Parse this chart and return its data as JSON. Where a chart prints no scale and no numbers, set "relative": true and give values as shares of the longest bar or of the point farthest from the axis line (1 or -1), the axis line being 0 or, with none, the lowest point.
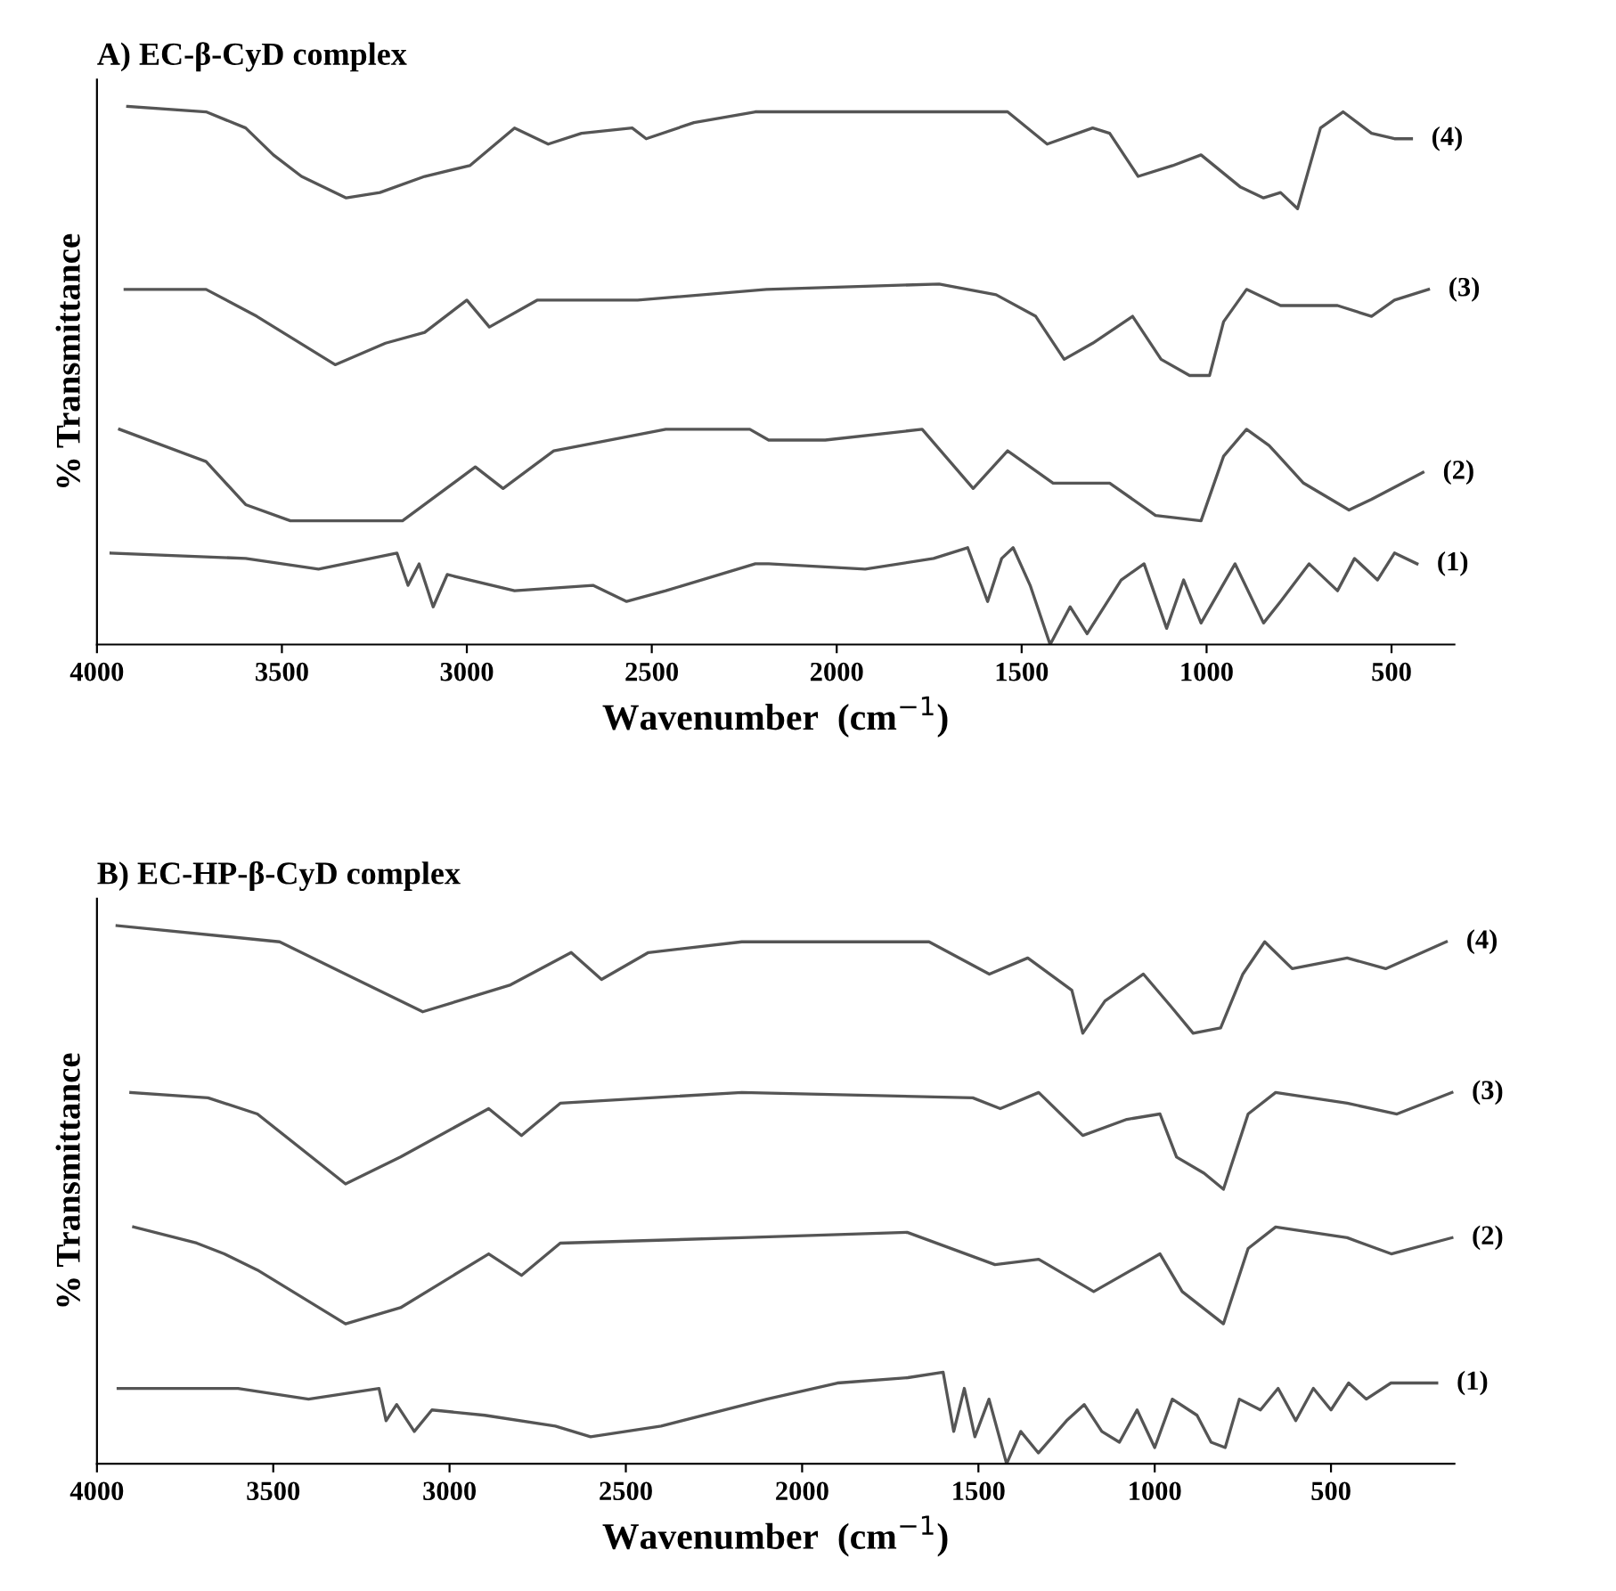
{
  "chart_data": [
    {
      "type": "line",
      "title": "A) EC-β-CyD complex",
      "xlabel": "Wavenumber  (cm$^{−1}$)",
      "ylabel": "% Transmittance",
      "relative": true,
      "tick_labels": "x",
      "grid": false,
      "legend": false,
      "marker": "none",
      "line_style": "solid",
      "xlim": [
        4000,
        330
      ],
      "xticks": [
        4000,
        3500,
        3000,
        2500,
        2000,
        1500,
        1000,
        500
      ],
      "series": [
        {
          "name": "(4)",
          "color": "#555555",
          "x": [
            3917,
            3705,
            3598,
            3523,
            3447,
            3326,
            3235,
            3114,
            2992,
            2871,
            2780,
            2690,
            2553,
            2515,
            2386,
            2220,
            2184,
            1723,
            1538,
            1431,
            1308,
            1262,
            1185,
            1092,
            1015,
            908,
            846,
            800,
            754,
            692,
            631,
            554,
            492,
            446
          ],
          "values": [
            1.0,
            0.99,
            0.96,
            0.91,
            0.87,
            0.83,
            0.84,
            0.87,
            0.89,
            0.96,
            0.93,
            0.95,
            0.96,
            0.94,
            0.97,
            0.99,
            0.99,
            0.99,
            0.99,
            0.93,
            0.96,
            0.95,
            0.87,
            0.89,
            0.91,
            0.85,
            0.83,
            0.84,
            0.81,
            0.96,
            0.99,
            0.95,
            0.94,
            0.94
          ]
        },
        {
          "name": "(3)",
          "color": "#555555",
          "x": [
            3924,
            3705,
            3568,
            3356,
            3220,
            3114,
            3000,
            2939,
            2810,
            2538,
            2190,
            1723,
            1569,
            1462,
            1385,
            1308,
            1200,
            1123,
            1046,
            992,
            954,
            892,
            800,
            646,
            554,
            492,
            400
          ],
          "values": [
            0.66,
            0.66,
            0.61,
            0.52,
            0.56,
            0.58,
            0.64,
            0.59,
            0.64,
            0.64,
            0.66,
            0.67,
            0.65,
            0.61,
            0.53,
            0.56,
            0.61,
            0.53,
            0.5,
            0.5,
            0.6,
            0.66,
            0.63,
            0.63,
            0.61,
            0.64,
            0.66
          ]
        },
        {
          "name": "(2)",
          "color": "#555555",
          "x": [
            3939,
            3705,
            3598,
            3477,
            3174,
            2977,
            2902,
            2765,
            2462,
            2235,
            2184,
            2031,
            1769,
            1631,
            1538,
            1415,
            1262,
            1138,
            1015,
            954,
            892,
            831,
            738,
            615,
            554,
            415
          ],
          "values": [
            0.4,
            0.34,
            0.26,
            0.23,
            0.23,
            0.33,
            0.29,
            0.36,
            0.4,
            0.4,
            0.38,
            0.38,
            0.4,
            0.29,
            0.36,
            0.3,
            0.3,
            0.24,
            0.23,
            0.35,
            0.4,
            0.37,
            0.3,
            0.25,
            0.27,
            0.32
          ]
        },
        {
          "name": "(1)",
          "color": "#555555",
          "x": [
            3962,
            3598,
            3401,
            3189,
            3159,
            3129,
            3091,
            3053,
            2871,
            2659,
            2568,
            2462,
            2220,
            2184,
            1923,
            1738,
            1646,
            1592,
            1554,
            1523,
            1477,
            1423,
            1369,
            1323,
            1231,
            1169,
            1108,
            1062,
            1015,
            923,
            846,
            800,
            723,
            646,
            600,
            538,
            492,
            431
          ],
          "values": [
            0.17,
            0.16,
            0.14,
            0.17,
            0.11,
            0.15,
            0.07,
            0.13,
            0.1,
            0.11,
            0.08,
            0.1,
            0.15,
            0.15,
            0.14,
            0.16,
            0.18,
            0.08,
            0.16,
            0.18,
            0.11,
            0.0,
            0.07,
            0.02,
            0.12,
            0.15,
            0.03,
            0.12,
            0.04,
            0.15,
            0.04,
            0.08,
            0.15,
            0.1,
            0.16,
            0.12,
            0.17,
            0.15
          ]
        }
      ]
    },
    {
      "type": "line",
      "title": "B) EC-HP-β-CyD complex",
      "xlabel": "Wavenumber  (cm$^{−1}$)",
      "ylabel": "% Transmittance",
      "relative": true,
      "tick_labels": "x",
      "grid": false,
      "legend": false,
      "marker": "none",
      "line_style": "solid",
      "xlim": [
        4000,
        150
      ],
      "xticks": [
        4000,
        3500,
        3000,
        2500,
        2000,
        1500,
        1000,
        500
      ],
      "series": [
        {
          "name": "(4)",
          "color": "#555555",
          "x": [
            3943,
            3482,
            3295,
            3076,
            2827,
            2655,
            2569,
            2436,
            2171,
            1640,
            1469,
            1360,
            1235,
            1204,
            1141,
            1032,
            954,
            891,
            813,
            750,
            688,
            610,
            454,
            345,
            173
          ],
          "values": [
            1.0,
            0.97,
            0.91,
            0.84,
            0.89,
            0.95,
            0.9,
            0.95,
            0.97,
            0.97,
            0.91,
            0.94,
            0.88,
            0.8,
            0.86,
            0.91,
            0.85,
            0.8,
            0.81,
            0.91,
            0.97,
            0.92,
            0.94,
            0.92,
            0.97
          ]
        },
        {
          "name": "(3)",
          "color": "#555555",
          "x": [
            3904,
            3685,
            3545,
            3295,
            3139,
            2889,
            2796,
            2686,
            2171,
            1516,
            1438,
            1329,
            1204,
            1079,
            985,
            938,
            860,
            805,
            735,
            657,
            454,
            313,
            157
          ],
          "values": [
            0.69,
            0.68,
            0.65,
            0.52,
            0.57,
            0.66,
            0.61,
            0.67,
            0.69,
            0.68,
            0.66,
            0.69,
            0.61,
            0.64,
            0.65,
            0.57,
            0.54,
            0.51,
            0.65,
            0.69,
            0.67,
            0.65,
            0.69
          ]
        },
        {
          "name": "(2)",
          "color": "#555555",
          "x": [
            3896,
            3717,
            3639,
            3545,
            3295,
            3139,
            2889,
            2796,
            2686,
            2171,
            1702,
            1453,
            1329,
            1173,
            985,
            922,
            805,
            735,
            657,
            454,
            329,
            157
          ],
          "values": [
            0.44,
            0.41,
            0.39,
            0.36,
            0.26,
            0.29,
            0.39,
            0.35,
            0.41,
            0.42,
            0.43,
            0.37,
            0.38,
            0.32,
            0.39,
            0.32,
            0.26,
            0.4,
            0.44,
            0.42,
            0.39,
            0.42
          ]
        },
        {
          "name": "(1)",
          "color": "#555555",
          "x": [
            3940,
            3600,
            3400,
            3200,
            3180,
            3150,
            3100,
            3050,
            2900,
            2700,
            2600,
            2400,
            2100,
            1900,
            1700,
            1600,
            1570,
            1540,
            1510,
            1470,
            1420,
            1380,
            1330,
            1250,
            1200,
            1150,
            1100,
            1050,
            1000,
            950,
            880,
            840,
            800,
            760,
            700,
            650,
            600,
            550,
            500,
            450,
            400,
            330,
            200
          ],
          "values": [
            0.14,
            0.14,
            0.12,
            0.14,
            0.08,
            0.11,
            0.06,
            0.1,
            0.09,
            0.07,
            0.05,
            0.07,
            0.12,
            0.15,
            0.16,
            0.17,
            0.06,
            0.14,
            0.05,
            0.12,
            0.0,
            0.06,
            0.02,
            0.08,
            0.11,
            0.06,
            0.04,
            0.1,
            0.03,
            0.12,
            0.09,
            0.04,
            0.03,
            0.12,
            0.1,
            0.14,
            0.08,
            0.14,
            0.1,
            0.15,
            0.12,
            0.15,
            0.15
          ]
        }
      ]
    }
  ]
}
